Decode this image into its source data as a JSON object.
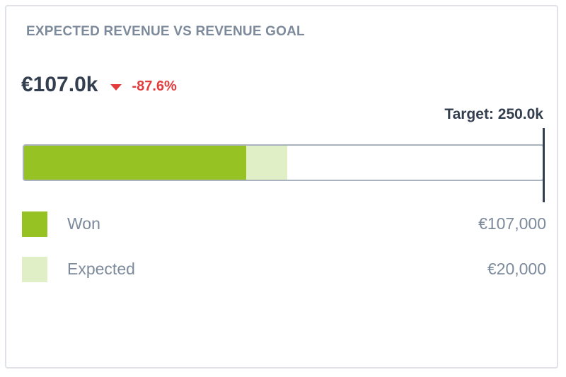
{
  "card": {
    "title": "EXPECTED REVENUE VS REVENUE GOAL",
    "kpi_value": "€107.0k",
    "delta": "-87.6%",
    "delta_icon": "caret-down-icon",
    "target_label": "Target: 250.0k"
  },
  "colors": {
    "won": "#97c224",
    "expected": "#e1efc6",
    "negative": "#e23c3c",
    "target": "#333e4e"
  },
  "chart_data": {
    "type": "bar",
    "orientation": "horizontal-stacked",
    "title": "EXPECTED REVENUE VS REVENUE GOAL",
    "target": 250000,
    "xlim": [
      0,
      250000
    ],
    "series": [
      {
        "name": "Won",
        "value": 107000,
        "display": "€107,000",
        "color": "#97c224"
      },
      {
        "name": "Expected",
        "value": 20000,
        "display": "€20,000",
        "color": "#e1efc6"
      }
    ],
    "legend_position": "bottom"
  }
}
